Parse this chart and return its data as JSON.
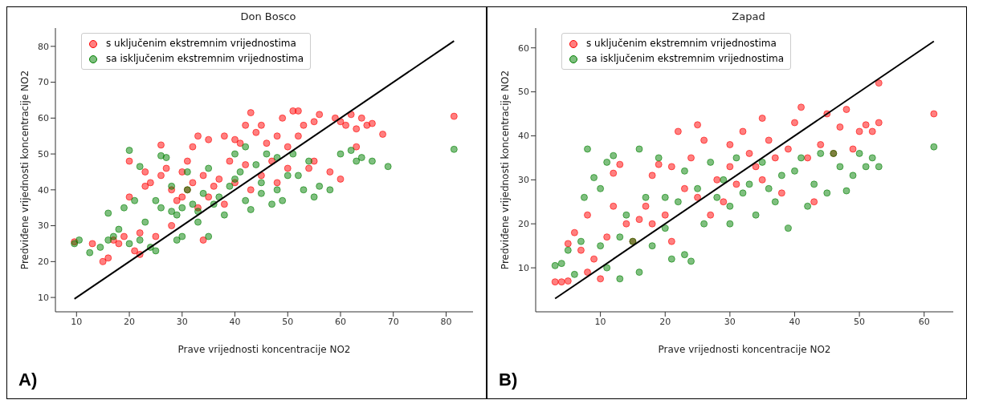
{
  "chart_data": [
    {
      "type": "scatter",
      "title": "Don Bosco",
      "xlabel": "Prave vrijednosti koncentracije NO2",
      "ylabel": "Predviđene vrijednosti koncentracije NO2",
      "xlim": [
        6,
        85.1
      ],
      "ylim": [
        6,
        85.1
      ],
      "xticks": [
        10,
        20,
        30,
        40,
        50,
        60,
        70,
        80
      ],
      "yticks": [
        10,
        20,
        30,
        40,
        50,
        60,
        70,
        80
      ],
      "legend": "top left",
      "marker": "circle",
      "annotations": [
        "A)"
      ],
      "series": [
        {
          "name": "s uključenim ekstremnim vrijednostima",
          "color": "#ff0000",
          "x": [
            9.6,
            13,
            15,
            16,
            17,
            18,
            19,
            20,
            20,
            21,
            22,
            22,
            23,
            23,
            24,
            25,
            26,
            26,
            27,
            28,
            28,
            29,
            30,
            30,
            31,
            31,
            32,
            32,
            33,
            33,
            34,
            34,
            35,
            35,
            36,
            37,
            38,
            38,
            39,
            40,
            40,
            41,
            42,
            42,
            43,
            43,
            44,
            45,
            45,
            46,
            47,
            48,
            48,
            49,
            50,
            50,
            51,
            52,
            52,
            53,
            54,
            55,
            55,
            56,
            58,
            59,
            60,
            60,
            61,
            62,
            63,
            63,
            64,
            65,
            66,
            68,
            81.5
          ],
          "values": [
            25.5,
            25,
            20,
            21,
            26,
            25,
            27,
            38,
            48,
            23,
            22,
            28,
            45,
            41,
            42,
            27,
            44,
            52.5,
            46,
            40,
            30,
            37,
            38,
            45,
            48,
            40,
            52,
            42,
            35,
            55,
            26,
            44,
            38,
            54,
            41,
            43,
            36,
            55,
            48,
            54,
            42,
            53,
            58,
            47,
            61.5,
            40,
            56,
            58,
            44,
            53,
            48,
            55,
            42,
            60,
            52,
            46,
            62,
            62,
            55,
            58,
            46,
            59,
            48,
            61,
            45,
            60,
            59,
            43,
            58,
            61,
            57,
            52,
            60,
            58,
            58.5,
            55.5,
            60.5
          ]
        },
        {
          "name": "sa isključenim ekstremnim vrijednostima",
          "color": "#008000",
          "x": [
            9.6,
            10.5,
            12.5,
            14.5,
            16,
            16,
            17,
            18,
            19,
            20,
            20,
            21,
            22,
            22,
            23,
            24,
            25,
            25,
            26,
            26,
            27,
            28,
            28,
            29,
            29,
            30,
            30,
            31,
            31,
            32,
            33,
            33,
            34,
            35,
            35,
            36,
            37,
            38,
            39,
            40,
            40,
            41,
            42,
            42,
            43,
            44,
            45,
            45,
            46,
            47,
            48,
            48,
            49,
            50,
            51,
            52,
            53,
            54,
            55,
            56,
            58,
            60,
            62,
            63,
            64,
            66,
            69,
            81.5
          ],
          "values": [
            25,
            26,
            22.5,
            24,
            33.5,
            26,
            27,
            29,
            35,
            51,
            25,
            37,
            46.5,
            26,
            31,
            24,
            37,
            23,
            49.5,
            35,
            49,
            41,
            34,
            33,
            26,
            35,
            27,
            45,
            40,
            36,
            34,
            31,
            39,
            27,
            46,
            36,
            38,
            33,
            41,
            50,
            43,
            45,
            37,
            52,
            34.5,
            47,
            42,
            39,
            50,
            36,
            49,
            40,
            37,
            44,
            50,
            44,
            40,
            48,
            38,
            41,
            40,
            50,
            51,
            48,
            49,
            48,
            46.5,
            51.3
          ]
        },
        {
          "type": "line",
          "marker": "none",
          "color": "#000000",
          "x": [
            9.6,
            81.5
          ],
          "values": [
            9.6,
            81.5
          ]
        }
      ]
    },
    {
      "type": "scatter",
      "title": "Zapad",
      "xlabel": "Prave vrijednosti koncentracije NO2",
      "ylabel": "Predviđene vrijednosti koncentracije NO2",
      "xlim": [
        0,
        64.5
      ],
      "ylim": [
        0,
        64.5
      ],
      "xticks": [
        10,
        20,
        30,
        40,
        50,
        60
      ],
      "yticks": [
        10,
        20,
        30,
        40,
        50,
        60
      ],
      "legend": "top left",
      "marker": "circle",
      "annotations": [
        "B)"
      ],
      "series": [
        {
          "name": "s uključenim ekstremnim vrijednostima",
          "color": "#ff0000",
          "x": [
            3,
            4,
            5,
            5,
            6,
            7,
            8,
            8,
            9,
            10,
            11,
            12,
            12,
            13,
            14,
            15,
            16,
            17,
            18,
            18,
            19,
            20,
            21,
            21,
            22,
            23,
            24,
            25,
            25,
            26,
            27,
            28,
            29,
            30,
            30,
            31,
            32,
            33,
            34,
            35,
            35,
            36,
            37,
            38,
            39,
            40,
            41,
            42,
            43,
            44,
            45,
            46,
            47,
            48,
            49,
            50,
            51,
            52,
            53,
            53,
            61.5
          ],
          "values": [
            6.8,
            6.8,
            7,
            15.5,
            18,
            14,
            9,
            22,
            12,
            7.5,
            17,
            24,
            31.5,
            33.5,
            20,
            16,
            21,
            24,
            31,
            20,
            33.5,
            22,
            33,
            16,
            41,
            28,
            35,
            42.5,
            26,
            39,
            22,
            30,
            25,
            38,
            33,
            29,
            41,
            36,
            33,
            44,
            30,
            39,
            35,
            27,
            37,
            43,
            46.5,
            35,
            25,
            38,
            45,
            36,
            42,
            46,
            37,
            41,
            42.5,
            41,
            52,
            43,
            45
          ]
        },
        {
          "name": "sa isključenim ekstremnim vrijednostima",
          "color": "#008000",
          "x": [
            3,
            4,
            5,
            6,
            7,
            7.5,
            8,
            9,
            10,
            10,
            11,
            11,
            12,
            13,
            13,
            14,
            15,
            16,
            16,
            17,
            18,
            19,
            20,
            20,
            21,
            22,
            23,
            23,
            24,
            25,
            26,
            27,
            28,
            29,
            30,
            30,
            31,
            32,
            33,
            34,
            35,
            36,
            37,
            38,
            39,
            40,
            41,
            42,
            43,
            44,
            45,
            46,
            47,
            48,
            49,
            50,
            51,
            52,
            53,
            61.5
          ],
          "values": [
            10.5,
            11,
            14,
            8.5,
            16,
            26,
            37,
            30.5,
            28,
            15,
            34,
            10,
            35.5,
            17,
            7.5,
            22,
            16,
            37,
            9,
            26,
            15,
            35,
            26,
            19,
            12,
            25,
            32,
            13,
            11.5,
            28,
            20,
            34,
            26,
            30,
            24,
            20,
            35,
            27,
            29,
            22,
            34,
            28,
            25,
            31,
            19,
            32,
            35,
            24,
            29,
            36,
            27,
            36,
            33,
            27.5,
            31,
            36,
            33,
            35,
            33,
            37.5
          ]
        },
        {
          "type": "line",
          "marker": "none",
          "color": "#000000",
          "x": [
            3,
            61.5
          ],
          "values": [
            3,
            61.5
          ]
        }
      ]
    }
  ]
}
